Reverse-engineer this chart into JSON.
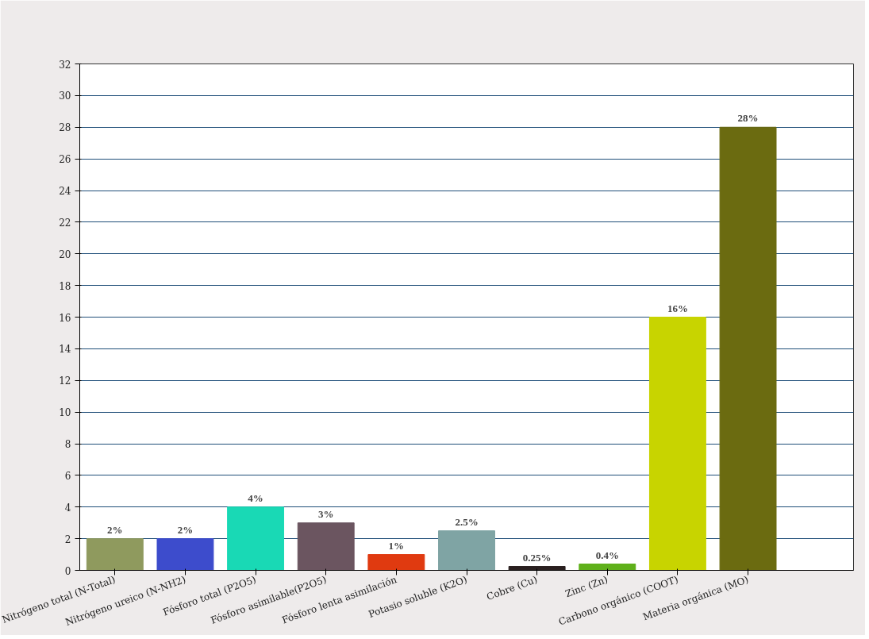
{
  "chart_data": {
    "type": "bar",
    "categories": [
      "Nitrógeno total (N-Total)",
      "Nitrógeno ureico (N-NH2)",
      "Fósforo total (P2O5)",
      "Fósforo asimilable(P2O5)",
      "Fósforo lenta asimilación",
      "Potasio soluble (K2O)",
      "Cobre (Cu)",
      "Zinc (Zn)",
      "Carbono orgánico (COOT)",
      "Materia orgánica (MO)"
    ],
    "values": [
      2,
      2,
      4,
      3,
      1,
      2.5,
      0.25,
      0.4,
      16,
      28
    ],
    "value_labels": [
      "2%",
      "2%",
      "4%",
      "3%",
      "1%",
      "2.5%",
      "0.25%",
      "0.4%",
      "16%",
      "28%"
    ],
    "colors": [
      "#8f9a5e",
      "#3d4ccc",
      "#19d9b5",
      "#6b5560",
      "#e03a10",
      "#7fa4a4",
      "#2a2020",
      "#5fb01a",
      "#c8d400",
      "#6b6b10"
    ],
    "ylim": [
      0,
      32
    ],
    "yticks": [
      0,
      2,
      4,
      6,
      8,
      10,
      12,
      14,
      16,
      18,
      20,
      22,
      24,
      26,
      28,
      30,
      32
    ],
    "grid": "y"
  }
}
